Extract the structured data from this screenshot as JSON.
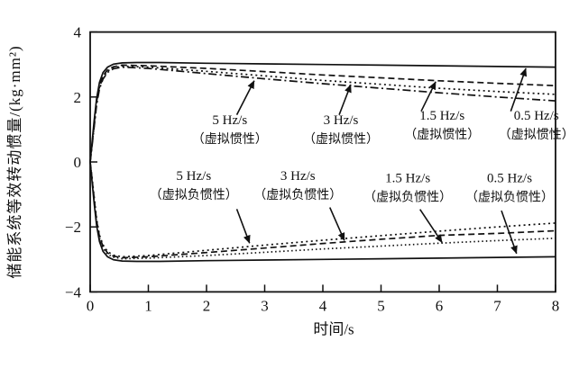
{
  "figure": {
    "background": "#ffffff",
    "ink": "#111111"
  },
  "chart_data": {
    "type": "line",
    "title": "",
    "xlabel": "时间/s",
    "ylabel": "储能系统等效转动惯量/(kg·mm²)",
    "xlim": [
      0,
      8
    ],
    "ylim": [
      -4,
      4
    ],
    "grid": false,
    "legend_position": "none",
    "x_ticks": [
      {
        "v": 0,
        "label": "0"
      },
      {
        "v": 1,
        "label": "1"
      },
      {
        "v": 2,
        "label": "2"
      },
      {
        "v": 3,
        "label": "3"
      },
      {
        "v": 4,
        "label": "4"
      },
      {
        "v": 5,
        "label": "5"
      },
      {
        "v": 6,
        "label": "6"
      },
      {
        "v": 7,
        "label": "7"
      },
      {
        "v": 8,
        "label": "8"
      }
    ],
    "y_ticks": [
      {
        "v": -4,
        "label": "−4"
      },
      {
        "v": -2,
        "label": "−2"
      },
      {
        "v": 0,
        "label": "0"
      },
      {
        "v": 2,
        "label": "2"
      },
      {
        "v": 4,
        "label": "4"
      }
    ],
    "series": [
      {
        "name": "0.5 Hz/s 虚拟惯性",
        "style": "solid",
        "points": [
          [
            0,
            0
          ],
          [
            0.03,
            0.55
          ],
          [
            0.07,
            1.3
          ],
          [
            0.11,
            1.95
          ],
          [
            0.16,
            2.45
          ],
          [
            0.22,
            2.75
          ],
          [
            0.3,
            2.92
          ],
          [
            0.4,
            3.01
          ],
          [
            0.55,
            3.05
          ],
          [
            0.8,
            3.06
          ],
          [
            1.2,
            3.06
          ],
          [
            2,
            3.04
          ],
          [
            3,
            3.02
          ],
          [
            4,
            3.0
          ],
          [
            5,
            2.98
          ],
          [
            6,
            2.96
          ],
          [
            7,
            2.94
          ],
          [
            8,
            2.92
          ]
        ]
      },
      {
        "name": "1.5 Hz/s 虚拟惯性",
        "style": "dashed",
        "points": [
          [
            0,
            0
          ],
          [
            0.03,
            0.5
          ],
          [
            0.07,
            1.2
          ],
          [
            0.11,
            1.85
          ],
          [
            0.16,
            2.35
          ],
          [
            0.22,
            2.65
          ],
          [
            0.3,
            2.84
          ],
          [
            0.4,
            2.93
          ],
          [
            0.55,
            2.98
          ],
          [
            1,
            2.96
          ],
          [
            2,
            2.88
          ],
          [
            3,
            2.78
          ],
          [
            4,
            2.68
          ],
          [
            5,
            2.59
          ],
          [
            6,
            2.5
          ],
          [
            7,
            2.42
          ],
          [
            8,
            2.35
          ]
        ]
      },
      {
        "name": "3 Hz/s 虚拟惯性",
        "style": "dotted",
        "points": [
          [
            0,
            0
          ],
          [
            0.03,
            0.48
          ],
          [
            0.07,
            1.15
          ],
          [
            0.11,
            1.8
          ],
          [
            0.16,
            2.3
          ],
          [
            0.22,
            2.6
          ],
          [
            0.3,
            2.8
          ],
          [
            0.4,
            2.9
          ],
          [
            0.55,
            2.95
          ],
          [
            1,
            2.92
          ],
          [
            2,
            2.79
          ],
          [
            3,
            2.65
          ],
          [
            4,
            2.51
          ],
          [
            5,
            2.39
          ],
          [
            6,
            2.27
          ],
          [
            7,
            2.17
          ],
          [
            8,
            2.08
          ]
        ]
      },
      {
        "name": "5 Hz/s 虚拟惯性",
        "style": "dashdot",
        "points": [
          [
            0,
            0
          ],
          [
            0.03,
            0.45
          ],
          [
            0.07,
            1.1
          ],
          [
            0.11,
            1.75
          ],
          [
            0.16,
            2.25
          ],
          [
            0.22,
            2.55
          ],
          [
            0.3,
            2.76
          ],
          [
            0.4,
            2.87
          ],
          [
            0.55,
            2.92
          ],
          [
            1,
            2.88
          ],
          [
            2,
            2.72
          ],
          [
            3,
            2.56
          ],
          [
            4,
            2.41
          ],
          [
            5,
            2.27
          ],
          [
            6,
            2.13
          ],
          [
            7,
            2.0
          ],
          [
            8,
            1.88
          ]
        ]
      },
      {
        "name": "0.5 Hz/s 虚拟负惯性",
        "style": "solid",
        "points": [
          [
            0,
            0
          ],
          [
            0.03,
            -0.55
          ],
          [
            0.07,
            -1.3
          ],
          [
            0.11,
            -1.95
          ],
          [
            0.16,
            -2.45
          ],
          [
            0.22,
            -2.75
          ],
          [
            0.3,
            -2.92
          ],
          [
            0.4,
            -3.01
          ],
          [
            0.55,
            -3.05
          ],
          [
            0.8,
            -3.06
          ],
          [
            1.2,
            -3.06
          ],
          [
            2,
            -3.04
          ],
          [
            3,
            -3.02
          ],
          [
            4,
            -3.0
          ],
          [
            5,
            -2.98
          ],
          [
            6,
            -2.96
          ],
          [
            7,
            -2.94
          ],
          [
            8,
            -2.92
          ]
        ]
      },
      {
        "name": "1.5 Hz/s 虚拟负惯性",
        "style": "finedot",
        "points": [
          [
            0,
            0
          ],
          [
            0.03,
            -0.5
          ],
          [
            0.07,
            -1.2
          ],
          [
            0.11,
            -1.85
          ],
          [
            0.16,
            -2.35
          ],
          [
            0.22,
            -2.65
          ],
          [
            0.3,
            -2.84
          ],
          [
            0.4,
            -2.93
          ],
          [
            0.55,
            -2.98
          ],
          [
            1,
            -2.96
          ],
          [
            2,
            -2.88
          ],
          [
            3,
            -2.78
          ],
          [
            4,
            -2.68
          ],
          [
            5,
            -2.59
          ],
          [
            6,
            -2.5
          ],
          [
            7,
            -2.42
          ],
          [
            8,
            -2.35
          ]
        ]
      },
      {
        "name": "3 Hz/s 虚拟负惯性",
        "style": "dashed",
        "points": [
          [
            0,
            0
          ],
          [
            0.03,
            -0.48
          ],
          [
            0.07,
            -1.15
          ],
          [
            0.11,
            -1.8
          ],
          [
            0.16,
            -2.3
          ],
          [
            0.22,
            -2.6
          ],
          [
            0.3,
            -2.8
          ],
          [
            0.4,
            -2.9
          ],
          [
            0.55,
            -2.95
          ],
          [
            1,
            -2.92
          ],
          [
            2,
            -2.79
          ],
          [
            3,
            -2.65
          ],
          [
            4,
            -2.51
          ],
          [
            5,
            -2.38
          ],
          [
            6,
            -2.26
          ],
          [
            7,
            -2.2
          ],
          [
            8,
            -2.12
          ]
        ]
      },
      {
        "name": "5 Hz/s 虚拟负惯性",
        "style": "dotted",
        "points": [
          [
            0,
            0
          ],
          [
            0.03,
            -0.45
          ],
          [
            0.07,
            -1.1
          ],
          [
            0.11,
            -1.75
          ],
          [
            0.16,
            -2.25
          ],
          [
            0.22,
            -2.55
          ],
          [
            0.3,
            -2.76
          ],
          [
            0.4,
            -2.87
          ],
          [
            0.55,
            -2.92
          ],
          [
            1,
            -2.88
          ],
          [
            2,
            -2.72
          ],
          [
            3,
            -2.56
          ],
          [
            4,
            -2.41
          ],
          [
            5,
            -2.27
          ],
          [
            6,
            -2.13
          ],
          [
            7,
            -2.0
          ],
          [
            8,
            -1.88
          ]
        ]
      }
    ],
    "annotations": [
      {
        "lines": [
          "5 Hz/s",
          "（虚拟惯性）"
        ],
        "at": [
          2.4,
          1.16
        ],
        "arrow_from": [
          2.52,
          1.45
        ],
        "arrow_to": [
          2.82,
          2.5
        ]
      },
      {
        "lines": [
          "3 Hz/s",
          "（虚拟惯性）"
        ],
        "at": [
          4.31,
          1.16
        ],
        "arrow_from": [
          4.28,
          1.45
        ],
        "arrow_to": [
          4.48,
          2.38
        ]
      },
      {
        "lines": [
          "1.5 Hz/s",
          "（虚拟惯性）"
        ],
        "at": [
          6.05,
          1.3
        ],
        "arrow_from": [
          5.69,
          1.56
        ],
        "arrow_to": [
          5.94,
          2.47
        ]
      },
      {
        "lines": [
          "0.5 Hz/s",
          "（虚拟惯性）"
        ],
        "at": [
          7.67,
          1.3
        ],
        "arrow_from": [
          7.23,
          1.56
        ],
        "arrow_to": [
          7.49,
          2.88
        ]
      },
      {
        "lines": [
          "5 Hz/s",
          "（虚拟负惯性）"
        ],
        "at": [
          1.78,
          -0.55
        ],
        "arrow_from": [
          2.52,
          -1.45
        ],
        "arrow_to": [
          2.74,
          -2.5
        ]
      },
      {
        "lines": [
          "3 Hz/s",
          "（虚拟负惯性）"
        ],
        "at": [
          3.57,
          -0.55
        ],
        "arrow_from": [
          4.12,
          -1.4
        ],
        "arrow_to": [
          4.37,
          -2.42
        ]
      },
      {
        "lines": [
          "1.5 Hz/s",
          "（虚拟负惯性）"
        ],
        "at": [
          5.46,
          -0.62
        ],
        "arrow_from": [
          5.67,
          -1.46
        ],
        "arrow_to": [
          6.05,
          -2.48
        ]
      },
      {
        "lines": [
          "0.5 Hz/s",
          "（虚拟负惯性）"
        ],
        "at": [
          7.21,
          -0.62
        ],
        "arrow_from": [
          7.07,
          -1.5
        ],
        "arrow_to": [
          7.33,
          -2.82
        ]
      }
    ]
  }
}
